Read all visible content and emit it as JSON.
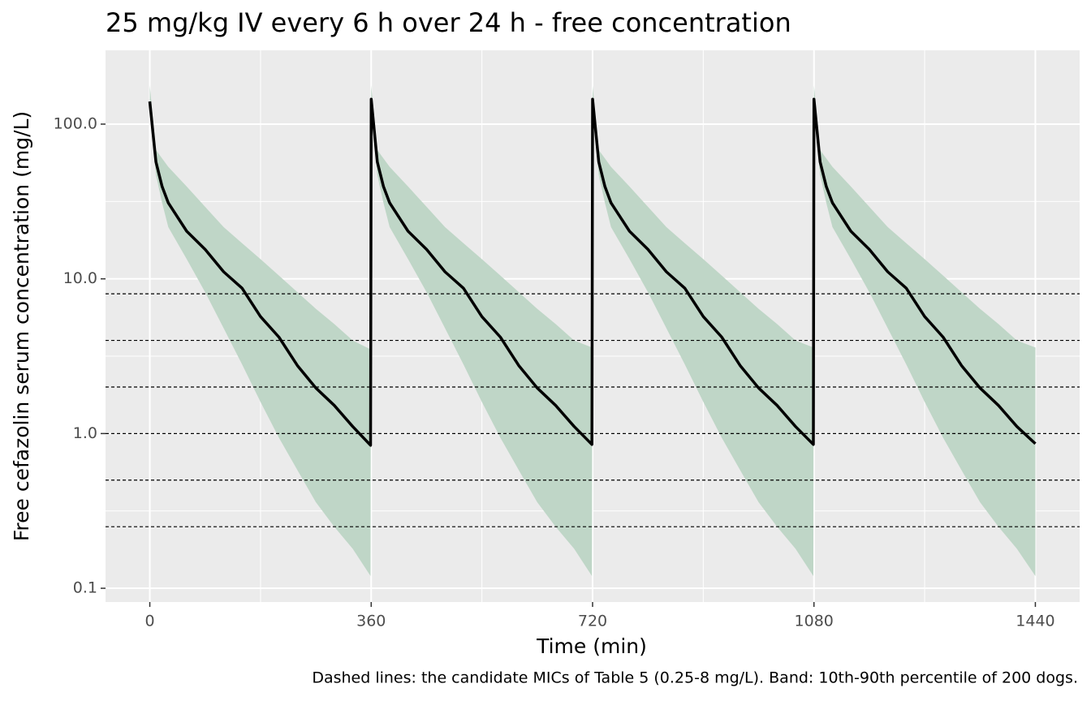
{
  "chart_data": {
    "type": "line",
    "title": "25 mg/kg IV every 6 h over 24 h - free concentration",
    "xlabel": "Time (min)",
    "ylabel": "Free cefazolin serum concentration (mg/L)",
    "caption": "Dashed lines: the candidate MICs of Table 5 (0.25-8 mg/L). Band: 10th-90th percentile of 200 dogs.",
    "log_y": true,
    "grid": true,
    "xlim": [
      -72,
      1512
    ],
    "ylim": [
      0.0815,
      300
    ],
    "xticks": [
      0,
      360,
      720,
      1080,
      1440
    ],
    "yticks": [
      {
        "value": 100,
        "label": "100.0"
      },
      {
        "value": 10,
        "label": "10.0"
      },
      {
        "value": 1,
        "label": "1.0"
      },
      {
        "value": 0.1,
        "label": "0.1"
      }
    ],
    "hlines": [
      0.25,
      0.5,
      1,
      2,
      4,
      8
    ],
    "x": [
      0,
      10,
      20,
      30,
      60,
      90,
      120,
      150,
      180,
      210,
      240,
      270,
      300,
      330,
      359,
      360,
      370,
      380,
      390,
      420,
      450,
      480,
      510,
      540,
      570,
      600,
      630,
      660,
      690,
      719,
      720,
      730,
      740,
      750,
      780,
      810,
      840,
      870,
      900,
      930,
      960,
      990,
      1020,
      1050,
      1079,
      1080,
      1090,
      1100,
      1110,
      1140,
      1170,
      1200,
      1230,
      1260,
      1290,
      1320,
      1350,
      1380,
      1410,
      1440
    ],
    "series": [
      {
        "color": "#000000",
        "values": [
          140,
          57,
          39.5,
          31,
          20.3,
          15.5,
          11.1,
          8.7,
          5.7,
          4.2,
          2.75,
          1.97,
          1.52,
          1.11,
          0.84,
          145,
          57,
          39.5,
          31,
          20.3,
          15.5,
          11.1,
          8.7,
          5.7,
          4.2,
          2.75,
          1.97,
          1.52,
          1.11,
          0.85,
          145,
          57,
          39.5,
          31,
          20.3,
          15.5,
          11.1,
          8.7,
          5.7,
          4.2,
          2.75,
          1.97,
          1.52,
          1.11,
          0.85,
          145,
          57,
          39.5,
          31,
          20.3,
          15.5,
          11.1,
          8.7,
          5.7,
          4.2,
          2.75,
          1.97,
          1.52,
          1.11,
          0.86
        ]
      }
    ],
    "band": {
      "color": "#bfd6c7",
      "lower": [
        120,
        47,
        31,
        21.6,
        13.4,
        8.2,
        4.8,
        2.8,
        1.6,
        0.94,
        0.58,
        0.36,
        0.25,
        0.18,
        0.12,
        120,
        47,
        31,
        21.6,
        13.4,
        8.2,
        4.8,
        2.8,
        1.6,
        0.94,
        0.58,
        0.36,
        0.25,
        0.18,
        0.12,
        120,
        47,
        31,
        21.6,
        13.4,
        8.2,
        4.8,
        2.8,
        1.6,
        0.94,
        0.58,
        0.36,
        0.25,
        0.18,
        0.12,
        120,
        47,
        31,
        21.6,
        13.4,
        8.2,
        4.8,
        2.8,
        1.6,
        0.94,
        0.58,
        0.36,
        0.25,
        0.18,
        0.12
      ],
      "upper": [
        178,
        68,
        60,
        53,
        39.5,
        29.2,
        21.6,
        17,
        13.4,
        10.5,
        8.2,
        6.4,
        5.1,
        4,
        3.5,
        178,
        68,
        60,
        53,
        39.5,
        29.2,
        21.6,
        17,
        13.4,
        10.5,
        8.2,
        6.4,
        5.1,
        4,
        3.6,
        178,
        68,
        60,
        53,
        39.5,
        29.2,
        21.6,
        17,
        13.4,
        10.5,
        8.2,
        6.4,
        5.1,
        4,
        3.6,
        178,
        68,
        60,
        53,
        39.5,
        29.2,
        21.6,
        17,
        13.4,
        10.5,
        8.2,
        6.4,
        5.1,
        4,
        3.6
      ]
    }
  }
}
